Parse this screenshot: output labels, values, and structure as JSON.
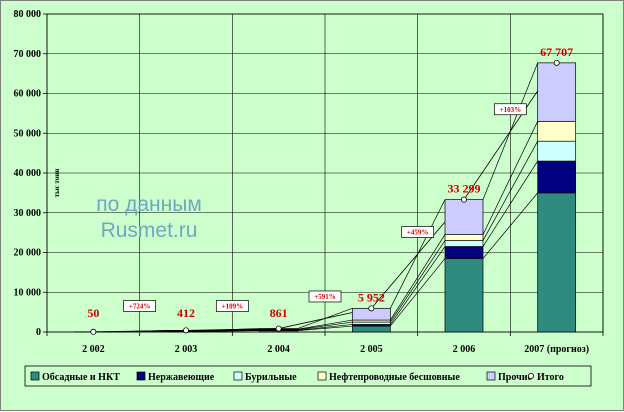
{
  "chart_data": {
    "type": "bar",
    "stacked": true,
    "categories": [
      "2 002",
      "2 003",
      "2 004",
      "2 005",
      "2 006",
      "2007 (прогноз)"
    ],
    "ylabel": "тыс тонн",
    "ylim": [
      0,
      80000
    ],
    "yticks": [
      0,
      10000,
      20000,
      30000,
      40000,
      50000,
      60000,
      70000,
      80000
    ],
    "ytick_labels": [
      "0",
      "10 000",
      "20 000",
      "30 000",
      "40 000",
      "50 000",
      "60 000",
      "70 000",
      "80 000"
    ],
    "grid": true,
    "legend_position": "bottom",
    "series": [
      {
        "name": "Обсадные и НКТ",
        "color": "#2e8b7e",
        "values": [
          20,
          150,
          350,
          1500,
          18500,
          35000
        ]
      },
      {
        "name": "Нержавеющие",
        "color": "#000080",
        "values": [
          5,
          50,
          100,
          400,
          3000,
          8000
        ]
      },
      {
        "name": "Бурильные",
        "color": "#ccffff",
        "values": [
          10,
          70,
          150,
          600,
          1500,
          5000
        ]
      },
      {
        "name": "Нефтепроводные бесшовные",
        "color": "#ffffcc",
        "values": [
          5,
          52,
          111,
          500,
          1500,
          5000
        ]
      },
      {
        "name": "Прочие",
        "color": "#ccccff",
        "values": [
          10,
          90,
          150,
          2952,
          8799,
          14707
        ]
      }
    ],
    "totals": {
      "name": "Итого",
      "values": [
        50,
        412,
        861,
        5952,
        33299,
        67707
      ],
      "labels": [
        "50",
        "412",
        "861",
        "5 952",
        "33 299",
        "67 707"
      ]
    },
    "growth_labels": [
      "+724%",
      "+109%",
      "+591%",
      "+459%",
      "+103%"
    ],
    "annotation": "по данным\nRusmet.ru"
  },
  "watermark": {
    "line1": "по данным",
    "line2": "Rusmet.ru"
  }
}
